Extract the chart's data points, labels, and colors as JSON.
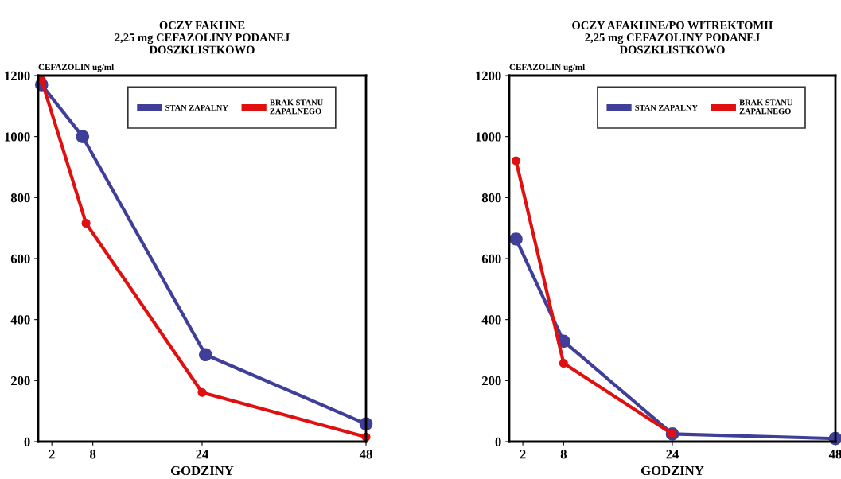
{
  "chart_data": [
    {
      "type": "line",
      "title": "OCZY FAKIJNE\n2,25 mg CEFAZOLINY PODANEJ\nDOSZKLISTKOWO",
      "xlabel": "GODZINY",
      "ylabel": "CEFAZOLIN ug/ml",
      "series": [
        {
          "name": "STAN ZAPALNY",
          "color": "#3f3f9a",
          "x": [
            0.5,
            6.5,
            24.5,
            48
          ],
          "values": [
            1170,
            1000,
            285,
            58
          ]
        },
        {
          "name": "BRAK STANU\nZAPALNEGO",
          "color": "#e01010",
          "x": [
            0.5,
            7,
            24,
            48
          ],
          "values": [
            1185,
            716,
            161,
            15
          ]
        }
      ],
      "xlim": [
        0,
        48
      ],
      "xticks": [
        2,
        8,
        24,
        48
      ],
      "ylim": [
        0,
        1200
      ],
      "yticks": [
        0,
        200,
        400,
        600,
        800,
        1000,
        1200
      ],
      "legend": "top right",
      "marker": "circle",
      "grid": false
    },
    {
      "type": "line",
      "title": "OCZY AFAKIJNE/PO WITREKTOMII\n2,25 mg CEFAZOLINY PODANEJ\nDOSZKLISTKOWO",
      "xlabel": "GODZINY",
      "ylabel": "CEFAZOLIN ug/ml",
      "series": [
        {
          "name": "STAN ZAPALNY",
          "color": "#3f3f9a",
          "x": [
            1,
            8,
            24,
            48
          ],
          "values": [
            664,
            329,
            25,
            10
          ]
        },
        {
          "name": "BRAK STANU\nZAPALNEGO",
          "color": "#e01010",
          "x": [
            1,
            8,
            24
          ],
          "values": [
            921,
            257,
            25
          ]
        }
      ],
      "xlim": [
        0,
        48
      ],
      "xticks": [
        2,
        8,
        24,
        48
      ],
      "ylim": [
        0,
        1200
      ],
      "yticks": [
        0,
        200,
        400,
        600,
        800,
        1000,
        1200
      ],
      "legend": "top right",
      "marker": "circle",
      "grid": false
    }
  ]
}
